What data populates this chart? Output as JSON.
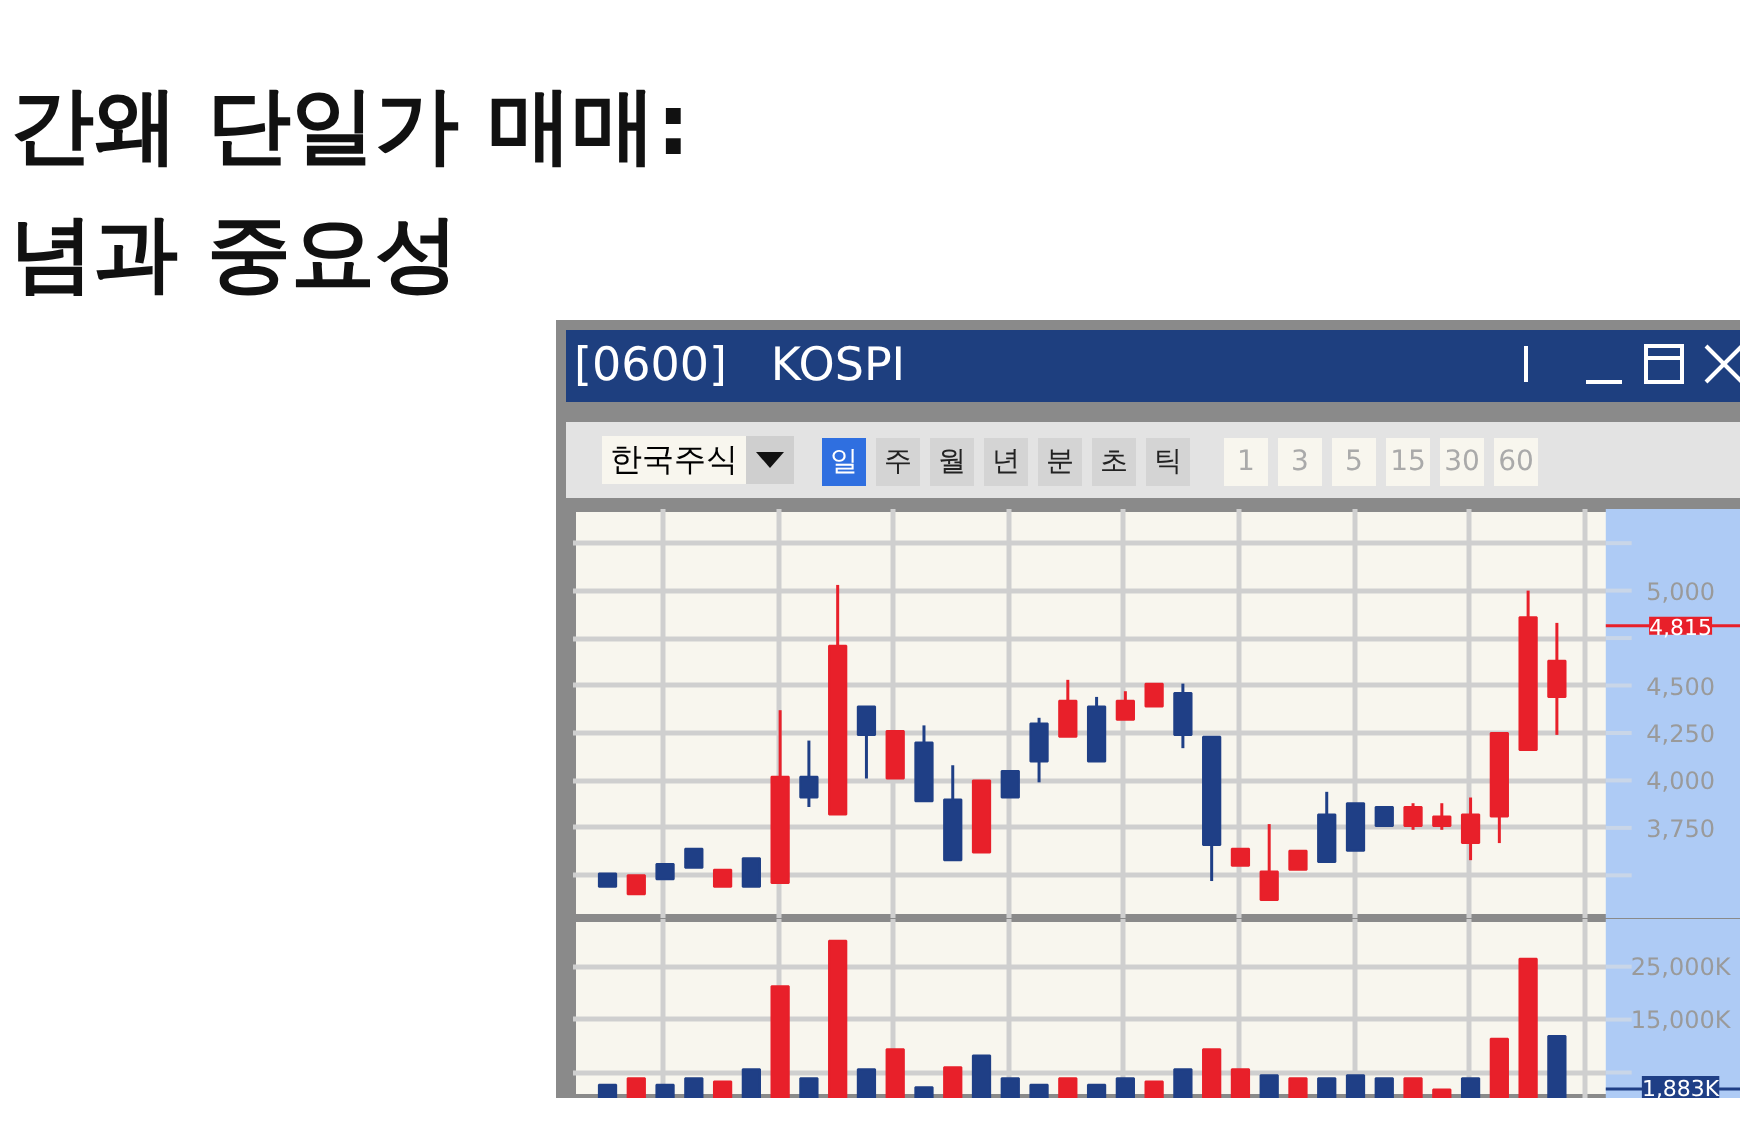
{
  "chart_data": [
    {
      "type": "candlestick",
      "title": "간왜 단일가 매매:\n념과 중요성",
      "subtitle": "[0600]   KOSPI",
      "annotations": [
        "한국주식",
        "일",
        "주",
        "월",
        "년",
        "분",
        "초",
        "틱",
        "1",
        "3",
        "5",
        "15",
        "30",
        "60"
      ],
      "categories": [
        null,
        null,
        null,
        null,
        null,
        null,
        null,
        null,
        null,
        null,
        null,
        null,
        null,
        null,
        null,
        null,
        null,
        null,
        null,
        null,
        null,
        null,
        null,
        null,
        null,
        null,
        null,
        null,
        null,
        null,
        null,
        null,
        null,
        null
      ],
      "ohlc": [
        [
          3510,
          3510,
          3440,
          3440
        ],
        [
          3400,
          3500,
          3400,
          3500
        ],
        [
          3560,
          3560,
          3480,
          3480
        ],
        [
          3640,
          3640,
          3540,
          3540
        ],
        [
          3440,
          3530,
          3440,
          3530
        ],
        [
          3590,
          3590,
          3440,
          3440
        ],
        [
          3460,
          4370,
          3460,
          4020
        ],
        [
          4020,
          4210,
          3860,
          3910
        ],
        [
          3820,
          5030,
          3820,
          4710
        ],
        [
          4390,
          4390,
          4010,
          4240
        ],
        [
          4010,
          4260,
          4010,
          4260
        ],
        [
          4200,
          4290,
          3890,
          3890
        ],
        [
          3900,
          4080,
          3580,
          3580
        ],
        [
          3620,
          4000,
          3620,
          4000
        ],
        [
          4050,
          4050,
          3910,
          3910
        ],
        [
          4300,
          4330,
          3990,
          4100
        ],
        [
          4230,
          4530,
          4230,
          4420
        ],
        [
          4390,
          4440,
          4100,
          4100
        ],
        [
          4320,
          4470,
          4320,
          4420
        ],
        [
          4390,
          4510,
          4390,
          4510
        ],
        [
          4460,
          4510,
          4170,
          4240
        ],
        [
          4230,
          4230,
          3470,
          3660
        ],
        [
          3550,
          3640,
          3550,
          3640
        ],
        [
          3370,
          3770,
          3370,
          3520
        ],
        [
          3530,
          3630,
          3530,
          3630
        ],
        [
          3820,
          3940,
          3570,
          3570
        ],
        [
          3880,
          3880,
          3630,
          3630
        ],
        [
          3860,
          3860,
          3760,
          3760
        ],
        [
          3760,
          3880,
          3740,
          3860
        ],
        [
          3760,
          3880,
          3740,
          3810
        ],
        [
          3670,
          3910,
          3580,
          3820
        ],
        [
          3810,
          4250,
          3670,
          4250
        ],
        [
          4160,
          5000,
          4160,
          4860
        ],
        [
          4440,
          4830,
          4240,
          4630
        ]
      ],
      "colors": [
        "#1f3f86",
        "#e8202a",
        "#1f3f86",
        "#1f3f86",
        "#e8202a",
        "#1f3f86",
        "#e8202a",
        "#1f3f86",
        "#e8202a",
        "#1f3f86",
        "#e8202a",
        "#1f3f86",
        "#1f3f86",
        "#e8202a",
        "#1f3f86",
        "#1f3f86",
        "#e8202a",
        "#1f3f86",
        "#e8202a",
        "#e8202a",
        "#1f3f86",
        "#1f3f86",
        "#e8202a",
        "#e8202a",
        "#e8202a",
        "#1f3f86",
        "#1f3f86",
        "#1f3f86",
        "#e8202a",
        "#e8202a",
        "#e8202a",
        "#e8202a",
        "#e8202a",
        "#e8202a"
      ],
      "ylim": [
        3270,
        5430
      ],
      "yticks": [
        {
          "value": 3500,
          "label": null
        },
        {
          "value": 3750,
          "label": "3,750"
        },
        {
          "value": 4000,
          "label": "4,000"
        },
        {
          "value": 4250,
          "label": "4,250"
        },
        {
          "value": 4500,
          "label": "4,500"
        },
        {
          "value": 4750,
          "label": null
        },
        {
          "value": 5000,
          "label": "5,000"
        },
        {
          "value": 5250,
          "label": null
        }
      ],
      "ref_lines": [
        {
          "axis": "y",
          "value": 4815,
          "label": "4,815",
          "color": "#e8202a"
        }
      ],
      "grid": true
    },
    {
      "type": "bar",
      "categories": [
        null,
        null,
        null,
        null,
        null,
        null,
        null,
        null,
        null,
        null,
        null,
        null,
        null,
        null,
        null,
        null,
        null,
        null,
        null,
        null,
        null,
        null,
        null,
        null,
        null,
        null,
        null,
        null,
        null,
        null,
        null,
        null,
        null,
        null
      ],
      "values": [
        2700,
        3900,
        2700,
        3900,
        3300,
        5600,
        21300,
        3900,
        29900,
        5600,
        9400,
        2200,
        6000,
        8200,
        3900,
        2700,
        3900,
        2700,
        3900,
        3300,
        5600,
        9400,
        5600,
        4500,
        3900,
        3900,
        4500,
        3900,
        3900,
        1800,
        3900,
        11400,
        26500,
        11900
      ],
      "colors": [
        "#1f3f86",
        "#e8202a",
        "#1f3f86",
        "#1f3f86",
        "#e8202a",
        "#1f3f86",
        "#e8202a",
        "#1f3f86",
        "#e8202a",
        "#1f3f86",
        "#e8202a",
        "#1f3f86",
        "#e8202a",
        "#1f3f86",
        "#1f3f86",
        "#1f3f86",
        "#e8202a",
        "#1f3f86",
        "#1f3f86",
        "#e8202a",
        "#1f3f86",
        "#e8202a",
        "#e8202a",
        "#1f3f86",
        "#e8202a",
        "#1f3f86",
        "#1f3f86",
        "#1f3f86",
        "#e8202a",
        "#e8202a",
        "#1f3f86",
        "#e8202a",
        "#e8202a",
        "#1f3f86"
      ],
      "ylim": [
        0,
        34000
      ],
      "yticks": [
        {
          "value": 5000,
          "label": null
        },
        {
          "value": 15000,
          "label": "15,000K"
        },
        {
          "value": 25000,
          "label": "25,000K"
        }
      ],
      "ref_lines": [
        {
          "axis": "y",
          "value": 1883,
          "label": "1,883K",
          "color": "#1f3f86"
        }
      ],
      "grid": true
    }
  ]
}
